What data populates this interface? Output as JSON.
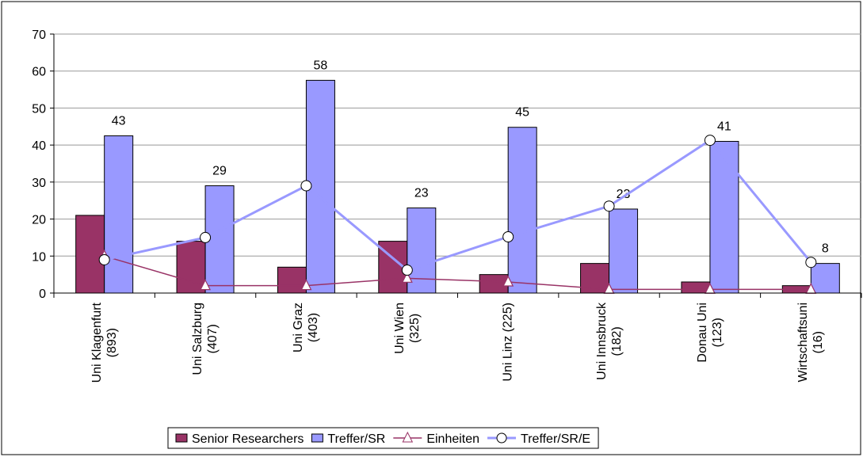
{
  "chart_data": {
    "type": "bar",
    "categories": [
      "Uni Klagenfurt\n(893)",
      "Uni Salzburg\n(407)",
      "Uni Graz\n(403)",
      "Uni Wien\n(325)",
      "Uni Linz (225)",
      "Uni Innsbruck\n(182)",
      "Donau Uni\n(123)",
      "Wirtschaftsuni\n(16)"
    ],
    "series": [
      {
        "name": "Senior Researchers",
        "type": "bar",
        "color": "#993366",
        "values": [
          21,
          14,
          7,
          14,
          5,
          8,
          3,
          2
        ]
      },
      {
        "name": "Treffer/SR",
        "type": "bar",
        "color": "#9999ff",
        "values": [
          42.5,
          29,
          57.5,
          23,
          44.8,
          22.7,
          41,
          8
        ],
        "value_labels": [
          "43",
          "29",
          "58",
          "23",
          "45",
          "23",
          "41",
          "8"
        ]
      },
      {
        "name": "Einheiten",
        "type": "line",
        "marker": "triangle",
        "color": "#993366",
        "values": [
          10,
          2,
          2,
          4,
          3,
          1,
          1,
          1
        ]
      },
      {
        "name": "Treffer/SR/E",
        "type": "line",
        "marker": "circle",
        "color": "#9999ff",
        "values": [
          9,
          15,
          29,
          6.2,
          15.2,
          23.5,
          41.3,
          8.3
        ]
      }
    ],
    "ylim": [
      0,
      70
    ],
    "yticks": [
      0,
      10,
      20,
      30,
      40,
      50,
      60,
      70
    ],
    "grid": true,
    "legend": "bottom"
  }
}
